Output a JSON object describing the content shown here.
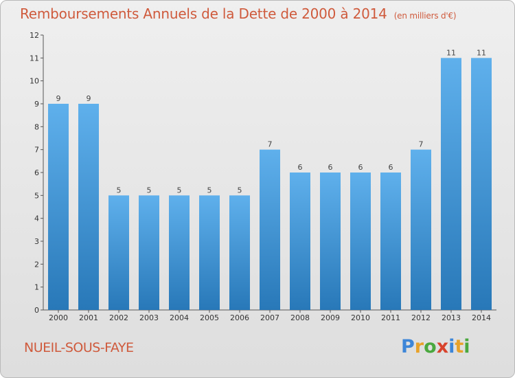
{
  "title": "Remboursements Annuels de la Dette de 2000 à 2014",
  "title_unit": "(en milliers d'€)",
  "commune": "NUEIL-SOUS-FAYE",
  "brand_letters": [
    "P",
    "r",
    "o",
    "x",
    "i",
    "t",
    "i"
  ],
  "colors": {
    "title": "#cf5a3c",
    "bar_light": "#5fb0ec",
    "bar_dark": "#2878b8"
  },
  "chart_data": {
    "type": "bar",
    "categories": [
      "2000",
      "2001",
      "2002",
      "2003",
      "2004",
      "2005",
      "2006",
      "2007",
      "2008",
      "2009",
      "2010",
      "2011",
      "2012",
      "2013",
      "2014"
    ],
    "values": [
      9,
      9,
      5,
      5,
      5,
      5,
      5,
      7,
      6,
      6,
      6,
      6,
      7,
      11,
      11
    ],
    "ylim": [
      0,
      12
    ],
    "yticks": [
      0,
      1,
      2,
      3,
      4,
      5,
      6,
      7,
      8,
      9,
      10,
      11,
      12
    ],
    "grid": false,
    "legend": "none"
  }
}
